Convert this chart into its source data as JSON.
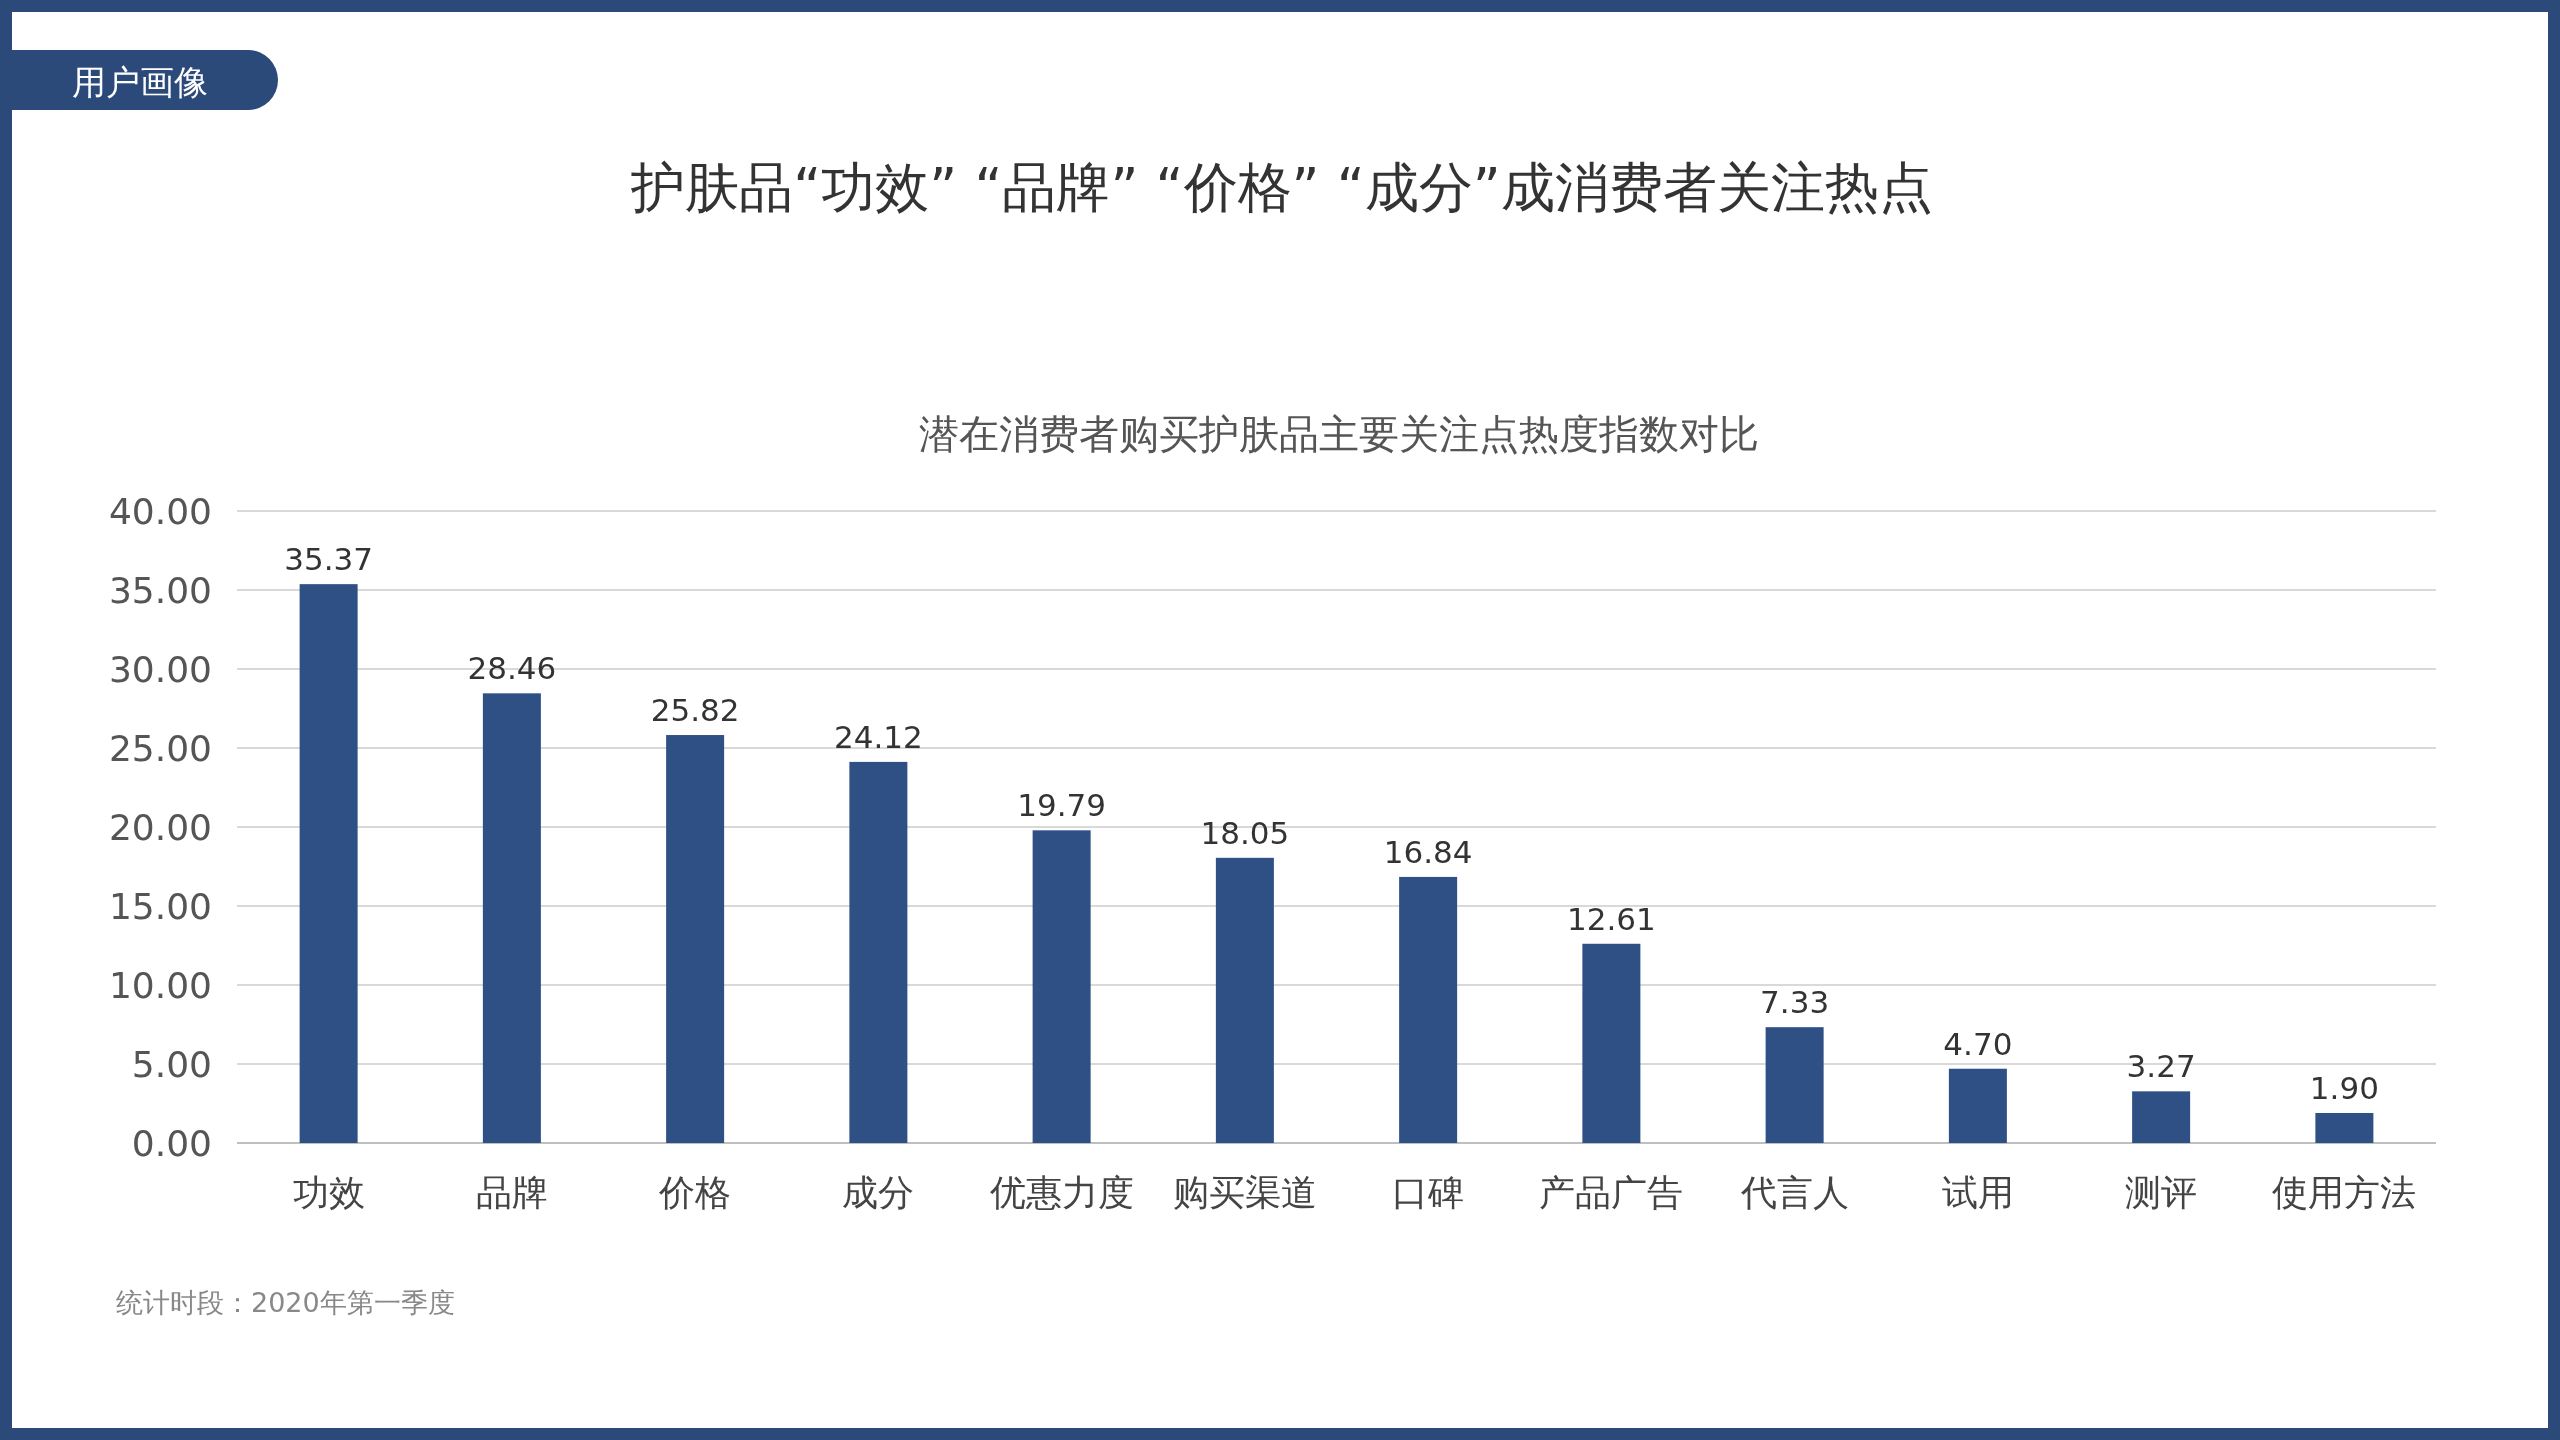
{
  "chart_data": {
    "type": "bar",
    "title": "护肤品“功效” “品牌” “价格” “成分”成消费者关注热点",
    "subtitle": "潜在消费者购买护肤品主要关注点热度指数对比",
    "annotations": [
      "用户画像",
      "统计时段：2020年第一季度"
    ],
    "categories": [
      "功效",
      "品牌",
      "价格",
      "成分",
      "优惠力度",
      "购买渠道",
      "口碑",
      "产品广告",
      "代言人",
      "试用",
      "测评",
      "使用方法"
    ],
    "values": [
      35.37,
      28.46,
      25.82,
      24.12,
      19.79,
      18.05,
      16.84,
      12.61,
      7.33,
      4.7,
      3.27,
      1.9
    ],
    "value_labels": [
      "35.37",
      "28.46",
      "25.82",
      "24.12",
      "19.79",
      "18.05",
      "16.84",
      "12.61",
      "7.33",
      "4.70",
      "3.27",
      "1.90"
    ],
    "color": "#2e5084",
    "ylim": [
      0,
      40
    ],
    "yticks": [
      {
        "value": 0,
        "label": "0.00"
      },
      {
        "value": 5,
        "label": "5.00"
      },
      {
        "value": 10,
        "label": "10.00"
      },
      {
        "value": 15,
        "label": "15.00"
      },
      {
        "value": 20,
        "label": "20.00"
      },
      {
        "value": 25,
        "label": "25.00"
      },
      {
        "value": 30,
        "label": "30.00"
      },
      {
        "value": 35,
        "label": "35.00"
      },
      {
        "value": 40,
        "label": "40.00"
      }
    ],
    "grid": "y"
  }
}
